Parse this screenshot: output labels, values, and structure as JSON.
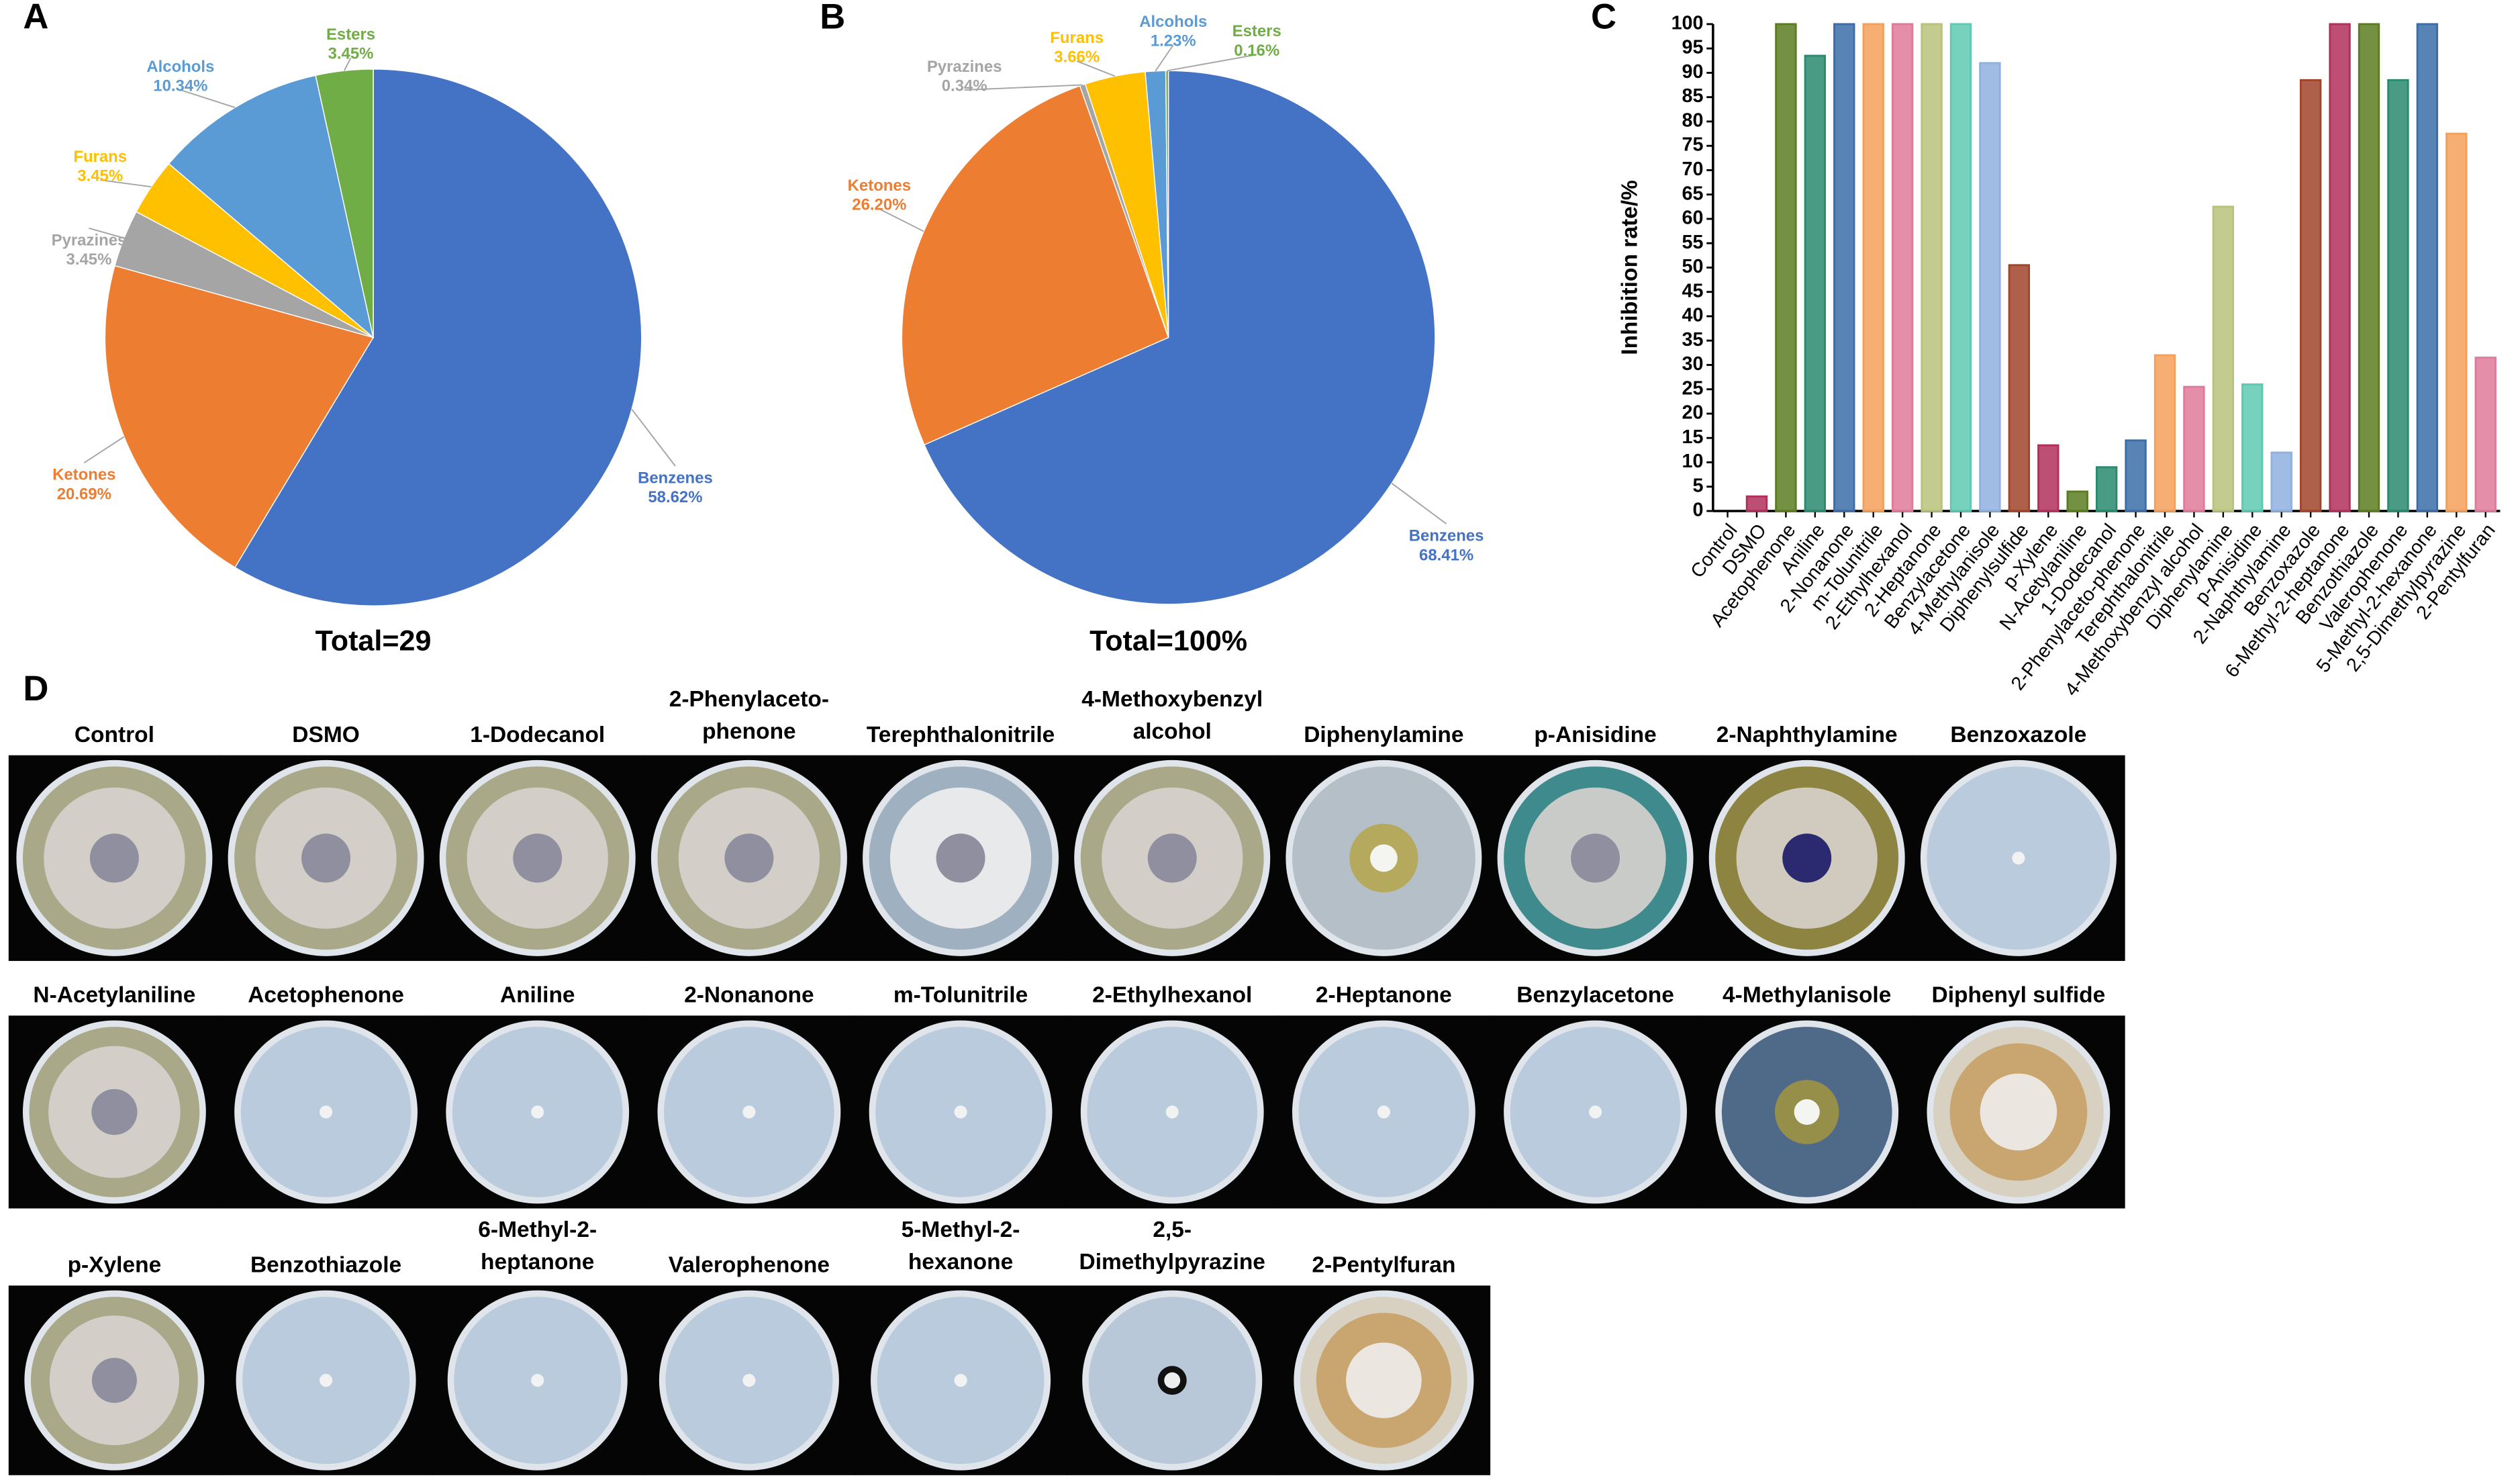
{
  "chart_data": [
    {
      "type": "pie",
      "panel": "A",
      "caption": "Total=29",
      "categories": [
        "Benzenes",
        "Ketones",
        "Pyrazines",
        "Furans",
        "Alcohols",
        "Esters"
      ],
      "values": [
        58.62,
        20.69,
        3.45,
        3.45,
        10.34,
        3.45
      ],
      "value_labels": [
        "58.62%",
        "20.69%",
        "3.45%",
        "3.45%",
        "10.34%",
        "3.45%"
      ],
      "colors": [
        "#4472c4",
        "#ed7d31",
        "#a5a5a5",
        "#ffc000",
        "#5b9bd5",
        "#70ad47"
      ]
    },
    {
      "type": "pie",
      "panel": "B",
      "caption": "Total=100%",
      "categories": [
        "Benzenes",
        "Ketones",
        "Pyrazines",
        "Furans",
        "Alcohols",
        "Esters"
      ],
      "values": [
        68.41,
        26.2,
        0.34,
        3.66,
        1.23,
        0.16
      ],
      "value_labels": [
        "68.41%",
        "26.20%",
        "0.34%",
        "3.66%",
        "1.23%",
        "0.16%"
      ],
      "colors": [
        "#4472c4",
        "#ed7d31",
        "#a5a5a5",
        "#ffc000",
        "#5b9bd5",
        "#70ad47"
      ]
    },
    {
      "type": "bar",
      "panel": "C",
      "ylabel": "Inhibition rate/%",
      "categories": [
        "Control",
        "DSMO",
        "Acetophenone",
        "Aniline",
        "2-Nonanone",
        "m-Tolunitrile",
        "2-Ethylhexanol",
        "2-Heptanone",
        "Benzylacetone",
        "4-Methylanisole",
        "Diphenylsulfide",
        "p-Xylene",
        "N-Acetylaniline",
        "1-Dodecanol",
        "2-Phenylaceto-phenone",
        "Terephthalonitrile",
        "4-Methoxybenzyl alcohol",
        "Diphenylamine",
        "p-Anisidine",
        "2-Naphthylamine",
        "Benzoxazole",
        "6-Methyl-2-heptanone",
        "Benzothiazole",
        "Valerophenone",
        "5-Methyl-2-hexanone",
        "2,5-Dimethylpyrazine",
        "2-Pentylfuran"
      ],
      "values": [
        0,
        3,
        100,
        93.5,
        100,
        100,
        100,
        100,
        100,
        92,
        50.5,
        13.5,
        4,
        9,
        14.5,
        32,
        25.5,
        62.5,
        26,
        12,
        88.5,
        100,
        100,
        88.5,
        100,
        77.5,
        31.5
      ],
      "colors": [
        "#b0305a",
        "#b0305a",
        "#5a7d22",
        "#2a8a6e",
        "#3b6ea8",
        "#f5a05a",
        "#e07a9a",
        "#b9c27a",
        "#5ec9b2",
        "#8fb0e0",
        "#a0442a",
        "#b0305a",
        "#5a7d22",
        "#2a8a6e",
        "#3b6ea8",
        "#f5a05a",
        "#e07a9a",
        "#b9c27a",
        "#5ec9b2",
        "#8fb0e0",
        "#a0442a",
        "#b0305a",
        "#5a7d22",
        "#2a8a6e",
        "#3b6ea8",
        "#f5a05a",
        "#e07a9a"
      ],
      "ylim": [
        0,
        100
      ],
      "yticks": [
        0,
        5,
        10,
        15,
        20,
        25,
        30,
        35,
        40,
        45,
        50,
        55,
        60,
        65,
        70,
        75,
        80,
        85,
        90,
        95,
        100
      ]
    }
  ],
  "photo_panel": {
    "panel": "D",
    "rows": [
      [
        [
          "Control"
        ],
        [
          "DSMO"
        ],
        [
          "1-Dodecanol"
        ],
        [
          "2-Phenylaceto-",
          "phenone"
        ],
        [
          "Terephthalonitrile"
        ],
        [
          "4-Methoxybenzyl",
          "alcohol"
        ],
        [
          "Diphenylamine"
        ],
        [
          "p-Anisidine"
        ],
        [
          "2-Naphthylamine"
        ],
        [
          "Benzoxazole"
        ]
      ],
      [
        [
          "N-Acetylaniline"
        ],
        [
          "Acetophenone"
        ],
        [
          "Aniline"
        ],
        [
          "2-Nonanone"
        ],
        [
          "m-Tolunitrile"
        ],
        [
          "2-Ethylhexanol"
        ],
        [
          "2-Heptanone"
        ],
        [
          "Benzylacetone"
        ],
        [
          "4-Methylanisole"
        ],
        [
          "Diphenyl sulfide"
        ]
      ],
      [
        [
          "p-Xylene"
        ],
        [
          "Benzothiazole"
        ],
        [
          "6-Methyl-2-",
          "heptanone"
        ],
        [
          "Valerophenone"
        ],
        [
          "5-Methyl-2-",
          "hexanone"
        ],
        [
          "2,5-",
          "Dimethylpyrazine"
        ],
        [
          "2-Pentylfuran"
        ]
      ]
    ]
  }
}
